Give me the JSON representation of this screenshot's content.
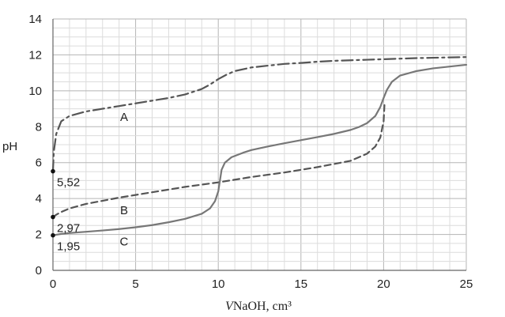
{
  "chart_data": {
    "type": "line",
    "xlabel_italic": "V",
    "xlabel_rest": "NaOH, cm³",
    "ylabel": "pH",
    "xlim": [
      0,
      25
    ],
    "ylim": [
      0,
      14
    ],
    "x_ticks": [
      "0",
      "5",
      "10",
      "15",
      "20",
      "25"
    ],
    "y_ticks": [
      "0",
      "2",
      "4",
      "6",
      "8",
      "10",
      "12",
      "14"
    ],
    "grid": true,
    "series": [
      {
        "name": "A",
        "style": "dash-dot",
        "color": "#555555",
        "x": [
          0,
          0.05,
          0.2,
          0.5,
          1,
          2,
          3,
          4,
          5,
          6,
          7,
          8,
          9,
          9.5,
          10,
          10.5,
          11,
          12,
          13,
          14,
          15,
          16,
          17,
          18,
          19,
          20,
          21,
          22,
          23,
          24,
          25
        ],
        "y": [
          5.52,
          6.6,
          7.6,
          8.3,
          8.6,
          8.85,
          9.0,
          9.15,
          9.3,
          9.45,
          9.6,
          9.8,
          10.1,
          10.35,
          10.65,
          10.9,
          11.1,
          11.3,
          11.4,
          11.5,
          11.55,
          11.62,
          11.67,
          11.7,
          11.73,
          11.76,
          11.79,
          11.82,
          11.84,
          11.86,
          11.88
        ]
      },
      {
        "name": "B",
        "style": "dashed",
        "color": "#555555",
        "x": [
          0,
          0.2,
          0.5,
          1,
          2,
          4,
          6,
          8,
          10,
          12,
          14,
          16,
          18,
          19,
          19.5,
          19.8,
          20,
          20.05
        ],
        "y": [
          2.97,
          3.1,
          3.25,
          3.45,
          3.7,
          4.05,
          4.35,
          4.65,
          4.9,
          5.2,
          5.45,
          5.75,
          6.1,
          6.5,
          6.9,
          7.4,
          8.3,
          9.2
        ]
      },
      {
        "name": "C",
        "style": "solid",
        "color": "#777777",
        "x": [
          0,
          0.5,
          1,
          2,
          3,
          4,
          5,
          6,
          7,
          8,
          9,
          9.5,
          9.8,
          10,
          10.1,
          10.2,
          10.4,
          10.8,
          11.5,
          12,
          13,
          14,
          15,
          16,
          17,
          18,
          18.5,
          19,
          19.5,
          19.8,
          20,
          20.2,
          20.5,
          21,
          22,
          23,
          24,
          25
        ],
        "y": [
          1.95,
          2.03,
          2.08,
          2.15,
          2.22,
          2.3,
          2.4,
          2.52,
          2.68,
          2.87,
          3.15,
          3.45,
          3.85,
          4.4,
          5.0,
          5.6,
          6.0,
          6.3,
          6.55,
          6.7,
          6.9,
          7.08,
          7.25,
          7.42,
          7.6,
          7.82,
          7.98,
          8.2,
          8.6,
          9.1,
          9.6,
          10.05,
          10.5,
          10.85,
          11.1,
          11.25,
          11.35,
          11.45
        ]
      }
    ],
    "curve_labels": [
      {
        "text": "A",
        "x": 4.3,
        "y": 8.55
      },
      {
        "text": "B",
        "x": 4.3,
        "y": 3.35
      },
      {
        "text": "C",
        "x": 4.3,
        "y": 1.6
      }
    ],
    "points": [
      {
        "label": "5,52",
        "x": 0,
        "y": 5.52
      },
      {
        "label": "2,97",
        "x": 0,
        "y": 2.97
      },
      {
        "label": "1,95",
        "x": 0,
        "y": 1.95
      }
    ]
  }
}
